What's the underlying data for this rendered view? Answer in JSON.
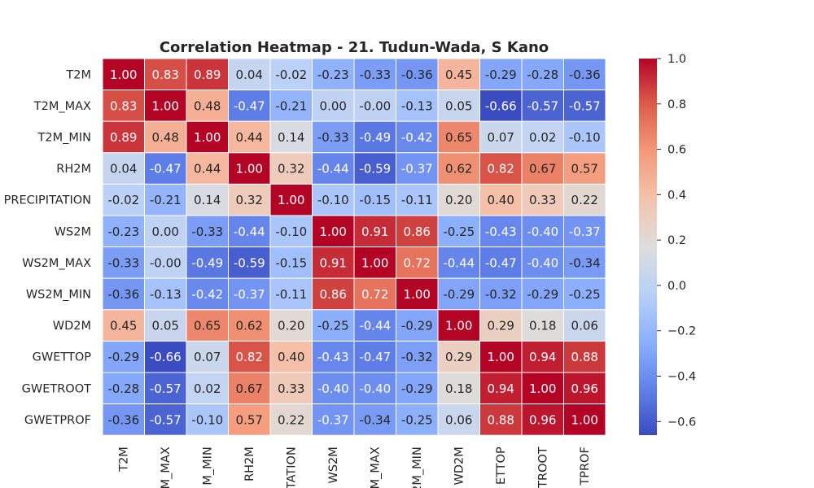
{
  "chart_data": {
    "type": "heatmap",
    "title": "Correlation Heatmap - 21. Tudun-Wada, S Kano",
    "variables": [
      "T2M",
      "T2M_MAX",
      "T2M_MIN",
      "RH2M",
      "PRECIPITATION",
      "WS2M",
      "WS2M_MAX",
      "WS2M_MIN",
      "WD2M",
      "GWETTOP",
      "GWETROOT",
      "GWETPROF"
    ],
    "x_tick_labels": [
      "T2M",
      "M_MAX",
      "M_MIN",
      "RH2M",
      "TATION",
      "WS2M",
      "M_MAX",
      "2M_MIN",
      "WD2M",
      "ETTOP",
      "TROOT",
      "TPROF"
    ],
    "matrix": [
      [
        1.0,
        0.83,
        0.89,
        0.04,
        -0.02,
        -0.23,
        -0.33,
        -0.36,
        0.45,
        -0.29,
        -0.28,
        -0.36
      ],
      [
        0.83,
        1.0,
        0.48,
        -0.47,
        -0.21,
        0.0,
        -0.0,
        -0.13,
        0.05,
        -0.66,
        -0.57,
        -0.57
      ],
      [
        0.89,
        0.48,
        1.0,
        0.44,
        0.14,
        -0.33,
        -0.49,
        -0.42,
        0.65,
        0.07,
        0.02,
        -0.1
      ],
      [
        0.04,
        -0.47,
        0.44,
        1.0,
        0.32,
        -0.44,
        -0.59,
        -0.37,
        0.62,
        0.82,
        0.67,
        0.57
      ],
      [
        -0.02,
        -0.21,
        0.14,
        0.32,
        1.0,
        -0.1,
        -0.15,
        -0.11,
        0.2,
        0.4,
        0.33,
        0.22
      ],
      [
        -0.23,
        0.0,
        -0.33,
        -0.44,
        -0.1,
        1.0,
        0.91,
        0.86,
        -0.25,
        -0.43,
        -0.4,
        -0.37
      ],
      [
        -0.33,
        -0.0,
        -0.49,
        -0.59,
        -0.15,
        0.91,
        1.0,
        0.72,
        -0.44,
        -0.47,
        -0.4,
        -0.34
      ],
      [
        -0.36,
        -0.13,
        -0.42,
        -0.37,
        -0.11,
        0.86,
        0.72,
        1.0,
        -0.29,
        -0.32,
        -0.29,
        -0.25
      ],
      [
        0.45,
        0.05,
        0.65,
        0.62,
        0.2,
        -0.25,
        -0.44,
        -0.29,
        1.0,
        0.29,
        0.18,
        0.06
      ],
      [
        -0.29,
        -0.66,
        0.07,
        0.82,
        0.4,
        -0.43,
        -0.47,
        -0.32,
        0.29,
        1.0,
        0.94,
        0.88
      ],
      [
        -0.28,
        -0.57,
        0.02,
        0.67,
        0.33,
        -0.4,
        -0.4,
        -0.29,
        0.18,
        0.94,
        1.0,
        0.96
      ],
      [
        -0.36,
        -0.57,
        -0.1,
        0.57,
        0.22,
        -0.37,
        -0.34,
        -0.25,
        0.06,
        0.88,
        0.96,
        1.0
      ]
    ],
    "matrix_labels": [
      [
        "1.00",
        "0.83",
        "0.89",
        "0.04",
        "-0.02",
        "-0.23",
        "-0.33",
        "-0.36",
        "0.45",
        "-0.29",
        "-0.28",
        "-0.36"
      ],
      [
        "0.83",
        "1.00",
        "0.48",
        "-0.47",
        "-0.21",
        "0.00",
        "-0.00",
        "-0.13",
        "0.05",
        "-0.66",
        "-0.57",
        "-0.57"
      ],
      [
        "0.89",
        "0.48",
        "1.00",
        "0.44",
        "0.14",
        "-0.33",
        "-0.49",
        "-0.42",
        "0.65",
        "0.07",
        "0.02",
        "-0.10"
      ],
      [
        "0.04",
        "-0.47",
        "0.44",
        "1.00",
        "0.32",
        "-0.44",
        "-0.59",
        "-0.37",
        "0.62",
        "0.82",
        "0.67",
        "0.57"
      ],
      [
        "-0.02",
        "-0.21",
        "0.14",
        "0.32",
        "1.00",
        "-0.10",
        "-0.15",
        "-0.11",
        "0.20",
        "0.40",
        "0.33",
        "0.22"
      ],
      [
        "-0.23",
        "0.00",
        "-0.33",
        "-0.44",
        "-0.10",
        "1.00",
        "0.91",
        "0.86",
        "-0.25",
        "-0.43",
        "-0.40",
        "-0.37"
      ],
      [
        "-0.33",
        "-0.00",
        "-0.49",
        "-0.59",
        "-0.15",
        "0.91",
        "1.00",
        "0.72",
        "-0.44",
        "-0.47",
        "-0.40",
        "-0.34"
      ],
      [
        "-0.36",
        "-0.13",
        "-0.42",
        "-0.37",
        "-0.11",
        "0.86",
        "0.72",
        "1.00",
        "-0.29",
        "-0.32",
        "-0.29",
        "-0.25"
      ],
      [
        "0.45",
        "0.05",
        "0.65",
        "0.62",
        "0.20",
        "-0.25",
        "-0.44",
        "-0.29",
        "1.00",
        "0.29",
        "0.18",
        "0.06"
      ],
      [
        "-0.29",
        "-0.66",
        "0.07",
        "0.82",
        "0.40",
        "-0.43",
        "-0.47",
        "-0.32",
        "0.29",
        "1.00",
        "0.94",
        "0.88"
      ],
      [
        "-0.28",
        "-0.57",
        "0.02",
        "0.67",
        "0.33",
        "-0.40",
        "-0.40",
        "-0.29",
        "0.18",
        "0.94",
        "1.00",
        "0.96"
      ],
      [
        "-0.36",
        "-0.57",
        "-0.10",
        "0.57",
        "0.22",
        "-0.37",
        "-0.34",
        "-0.25",
        "0.06",
        "0.88",
        "0.96",
        "1.00"
      ]
    ],
    "colorscale": "coolwarm",
    "vmin": -0.66,
    "vmax": 1.0,
    "colorbar_ticks": [
      1.0,
      0.8,
      0.6,
      0.4,
      0.2,
      0.0,
      -0.2,
      -0.4,
      -0.6
    ],
    "colorbar_tick_labels": [
      "1.0",
      "0.8",
      "0.6",
      "0.4",
      "0.2",
      "0.0",
      "−0.2",
      "−0.4",
      "−0.6"
    ],
    "colors": {
      "low": "#3b4cc0",
      "mid": "#dddddd",
      "high": "#b40426",
      "text_dark": "#262626",
      "text_light": "#ffffff",
      "cell_border": "#ffffff"
    },
    "grid": false
  }
}
